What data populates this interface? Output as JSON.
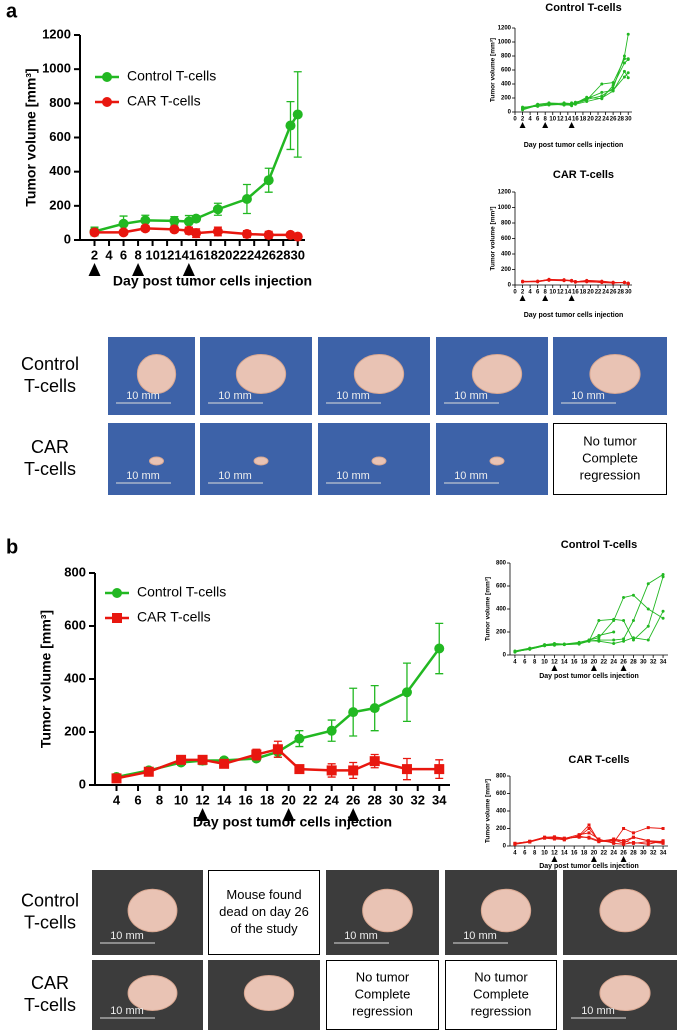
{
  "panel_labels": [
    "a",
    "b"
  ],
  "chart_data": [
    {
      "type": "line",
      "xlabel": "Day post tumor cells injection",
      "ylabel": "Tumor volume [mm³]",
      "x": [
        2,
        6,
        9,
        13,
        15,
        16,
        19,
        23,
        26,
        29,
        30
      ],
      "series": [
        {
          "name": "Control T-cells",
          "color": "#22b822",
          "marker": "circle",
          "values": [
            50,
            95,
            115,
            112,
            108,
            125,
            180,
            240,
            350,
            670,
            735
          ],
          "errors": [
            25,
            45,
            30,
            25,
            35,
            15,
            35,
            85,
            70,
            140,
            250
          ]
        },
        {
          "name": "CAR T-cells",
          "color": "#e8170f",
          "marker": "circle",
          "values": [
            45,
            45,
            68,
            62,
            55,
            40,
            50,
            35,
            30,
            30,
            20
          ],
          "errors": [
            10,
            10,
            15,
            15,
            20,
            25,
            25,
            20,
            20,
            15,
            5
          ]
        }
      ],
      "xlim": [
        0,
        31
      ],
      "ylim": [
        0,
        1200
      ],
      "xticks": [
        2,
        4,
        6,
        8,
        10,
        12,
        14,
        16,
        18,
        20,
        22,
        24,
        26,
        28,
        30
      ],
      "yticks": [
        0,
        200,
        400,
        600,
        800,
        1000,
        1200
      ],
      "injection_days": [
        2,
        8,
        15
      ],
      "legend": "upper left"
    },
    {
      "type": "line",
      "title": "Control T-cells",
      "xlabel": "Day post tumor cells injection",
      "ylabel": "Tumor volume [mm³]",
      "x": [
        2,
        6,
        9,
        13,
        15,
        16,
        19,
        23,
        26,
        29,
        30
      ],
      "series": [
        {
          "color": "#22b822",
          "marker": "circle",
          "values": [
            40,
            110,
            130,
            120,
            110,
            140,
            180,
            230,
            340,
            800,
            1110
          ]
        },
        {
          "color": "#22b822",
          "marker": "circle",
          "values": [
            50,
            90,
            120,
            100,
            100,
            120,
            170,
            400,
            420,
            760,
            760
          ]
        },
        {
          "color": "#22b822",
          "marker": "circle",
          "values": [
            60,
            100,
            110,
            130,
            120,
            110,
            150,
            200,
            300,
            580,
            490
          ]
        },
        {
          "color": "#22b822",
          "marker": "circle",
          "values": [
            70,
            80,
            100,
            110,
            90,
            130,
            190,
            280,
            310,
            500,
            560
          ]
        },
        {
          "color": "#22b822",
          "marker": "circle",
          "values": [
            30,
            95,
            115,
            100,
            130,
            125,
            210,
            190,
            380,
            700,
            750
          ]
        }
      ],
      "xlim": [
        0,
        31
      ],
      "ylim": [
        0,
        1200
      ],
      "xticks": [
        0,
        2,
        4,
        6,
        8,
        10,
        12,
        14,
        16,
        18,
        20,
        22,
        24,
        26,
        28,
        30
      ],
      "yticks": [
        0,
        200,
        400,
        600,
        800,
        1000,
        1200
      ],
      "injection_days": [
        2,
        8,
        15
      ]
    },
    {
      "type": "line",
      "title": "CAR T-cells",
      "xlabel": "Day post tumor cells injection",
      "ylabel": "Tumor volume [mm³]",
      "x": [
        2,
        6,
        9,
        13,
        15,
        16,
        19,
        23,
        26,
        29,
        30
      ],
      "series": [
        {
          "color": "#e8170f",
          "marker": "circle",
          "values": [
            45,
            50,
            70,
            65,
            60,
            40,
            60,
            50,
            35,
            30,
            20
          ]
        },
        {
          "color": "#e8170f",
          "marker": "circle",
          "values": [
            40,
            45,
            75,
            60,
            55,
            45,
            50,
            40,
            30,
            35,
            25
          ]
        },
        {
          "color": "#e8170f",
          "marker": "circle",
          "values": [
            50,
            40,
            65,
            70,
            50,
            35,
            45,
            35,
            30,
            30,
            20
          ]
        },
        {
          "color": "#e8170f",
          "marker": "circle",
          "values": [
            45,
            50,
            60,
            55,
            60,
            40,
            55,
            30,
            25,
            35,
            15
          ]
        },
        {
          "color": "#e8170f",
          "marker": "circle",
          "values": [
            40,
            45,
            70,
            60,
            50,
            45,
            40,
            35,
            35,
            30,
            25
          ]
        }
      ],
      "xlim": [
        0,
        31
      ],
      "ylim": [
        0,
        1200
      ],
      "xticks": [
        0,
        2,
        4,
        6,
        8,
        10,
        12,
        14,
        16,
        18,
        20,
        22,
        24,
        26,
        28,
        30
      ],
      "yticks": [
        0,
        200,
        400,
        600,
        800,
        1000,
        1200
      ],
      "injection_days": [
        2,
        8,
        15
      ]
    },
    {
      "type": "line",
      "xlabel": "Day post tumor cells injection",
      "ylabel": "Tumor volume [mm³]",
      "x": [
        4,
        7,
        10,
        12,
        14,
        17,
        19,
        21,
        24,
        26,
        28,
        31,
        34
      ],
      "series": [
        {
          "name": "Control T-cells",
          "color": "#22b822",
          "marker": "circle",
          "values": [
            30,
            55,
            85,
            92,
            93,
            100,
            125,
            175,
            205,
            275,
            290,
            350,
            515
          ],
          "errors": [
            5,
            5,
            10,
            15,
            10,
            10,
            20,
            30,
            40,
            90,
            85,
            110,
            95
          ]
        },
        {
          "name": "CAR T-cells",
          "color": "#e8170f",
          "marker": "square",
          "values": [
            25,
            50,
            95,
            95,
            80,
            115,
            135,
            60,
            55,
            55,
            90,
            60,
            60
          ],
          "errors": [
            5,
            5,
            10,
            15,
            15,
            20,
            30,
            10,
            25,
            30,
            25,
            40,
            35
          ]
        }
      ],
      "xlim": [
        2,
        35
      ],
      "ylim": [
        0,
        800
      ],
      "xticks": [
        4,
        6,
        8,
        10,
        12,
        14,
        16,
        18,
        20,
        22,
        24,
        26,
        28,
        30,
        32,
        34
      ],
      "yticks": [
        0,
        200,
        400,
        600,
        800
      ],
      "injection_days": [
        12,
        20,
        26
      ],
      "legend": "upper left"
    },
    {
      "type": "line",
      "title": "Control T-cells",
      "xlabel": "Day post tumor cells injection",
      "ylabel": "Tumor volume [mm³]",
      "x": [
        4,
        7,
        10,
        12,
        14,
        17,
        19,
        21,
        24,
        26,
        28,
        31,
        34
      ],
      "series": [
        {
          "color": "#22b822",
          "marker": "circle",
          "values": [
            30,
            50,
            80,
            90,
            95,
            100,
            120,
            300,
            310,
            300,
            130,
            250,
            680
          ]
        },
        {
          "color": "#22b822",
          "marker": "circle",
          "values": [
            25,
            55,
            90,
            100,
            95,
            110,
            130,
            150,
            300,
            500,
            520,
            400,
            320
          ]
        },
        {
          "color": "#22b822",
          "marker": "circle",
          "values": [
            35,
            60,
            85,
            95,
            90,
            95,
            120,
            130,
            130,
            140,
            300,
            620,
            700
          ]
        },
        {
          "color": "#22b822",
          "marker": "circle",
          "values": [
            30,
            50,
            80,
            85,
            90,
            100,
            125,
            120,
            100,
            120,
            150,
            130,
            380
          ]
        },
        {
          "color": "#22b822",
          "marker": "circle",
          "values": [
            28,
            55,
            88,
            92,
            95,
            100,
            130,
            170,
            200,
            null,
            null,
            null,
            null
          ]
        }
      ],
      "xlim": [
        3,
        35
      ],
      "ylim": [
        0,
        800
      ],
      "xticks": [
        4,
        6,
        8,
        10,
        12,
        14,
        16,
        18,
        20,
        22,
        24,
        26,
        28,
        30,
        32,
        34
      ],
      "yticks": [
        0,
        200,
        400,
        600,
        800
      ],
      "injection_days": [
        12,
        20,
        26
      ]
    },
    {
      "type": "line",
      "title": "CAR T-cells",
      "xlabel": "Day post tumor cells injection",
      "ylabel": "Tumor volume [mm³]",
      "x": [
        4,
        7,
        10,
        12,
        14,
        17,
        19,
        21,
        24,
        26,
        28,
        31,
        34
      ],
      "series": [
        {
          "color": "#e8170f",
          "marker": "square",
          "values": [
            30,
            50,
            100,
            90,
            70,
            120,
            240,
            50,
            60,
            60,
            100,
            60,
            50
          ]
        },
        {
          "color": "#e8170f",
          "marker": "square",
          "values": [
            20,
            45,
            90,
            100,
            80,
            110,
            200,
            60,
            40,
            200,
            150,
            210,
            200
          ]
        },
        {
          "color": "#e8170f",
          "marker": "square",
          "values": [
            25,
            50,
            95,
            95,
            85,
            130,
            150,
            80,
            30,
            20,
            40,
            20,
            60
          ]
        },
        {
          "color": "#e8170f",
          "marker": "square",
          "values": [
            25,
            55,
            100,
            105,
            90,
            100,
            100,
            60,
            70,
            30,
            100,
            60,
            40
          ]
        },
        {
          "color": "#e8170f",
          "marker": "square",
          "values": [
            30,
            50,
            90,
            80,
            75,
            115,
            90,
            50,
            80,
            60,
            30,
            50,
            30
          ]
        }
      ],
      "xlim": [
        3,
        35
      ],
      "ylim": [
        0,
        800
      ],
      "xticks": [
        4,
        6,
        8,
        10,
        12,
        14,
        16,
        18,
        20,
        22,
        24,
        26,
        28,
        30,
        32,
        34
      ],
      "yticks": [
        0,
        200,
        400,
        600,
        800
      ],
      "injection_days": [
        12,
        20,
        26
      ]
    }
  ],
  "photo_grids": [
    {
      "rows": [
        {
          "label": [
            "Control",
            "T-cells"
          ],
          "cells": [
            {
              "scale_bar": "10 mm"
            },
            {
              "scale_bar": "10 mm"
            },
            {
              "scale_bar": "10 mm"
            },
            {
              "scale_bar": "10 mm"
            },
            {
              "scale_bar": "10 mm"
            }
          ]
        },
        {
          "label": [
            "CAR",
            "T-cells"
          ],
          "cells": [
            {
              "scale_bar": "10 mm"
            },
            {
              "scale_bar": "10 mm"
            },
            {
              "scale_bar": "10 mm"
            },
            {
              "scale_bar": "10 mm"
            },
            {
              "text": [
                "No tumor",
                "Complete",
                "regression"
              ]
            }
          ]
        }
      ]
    },
    {
      "rows": [
        {
          "label": [
            "Control",
            "T-cells"
          ],
          "cells": [
            {
              "scale_bar": "10 mm"
            },
            {
              "text": [
                "Mouse found",
                "dead on day 26",
                "of the study"
              ]
            },
            {
              "scale_bar": "10 mm"
            },
            {
              "scale_bar": "10 mm"
            },
            {}
          ]
        },
        {
          "label": [
            "CAR",
            "T-cells"
          ],
          "cells": [
            {
              "scale_bar": "10 mm"
            },
            {},
            {
              "text": [
                "No tumor",
                "Complete",
                "regression"
              ]
            },
            {
              "text": [
                "No tumor",
                "Complete",
                "regression"
              ]
            },
            {
              "scale_bar": "10 mm"
            }
          ]
        }
      ]
    }
  ]
}
